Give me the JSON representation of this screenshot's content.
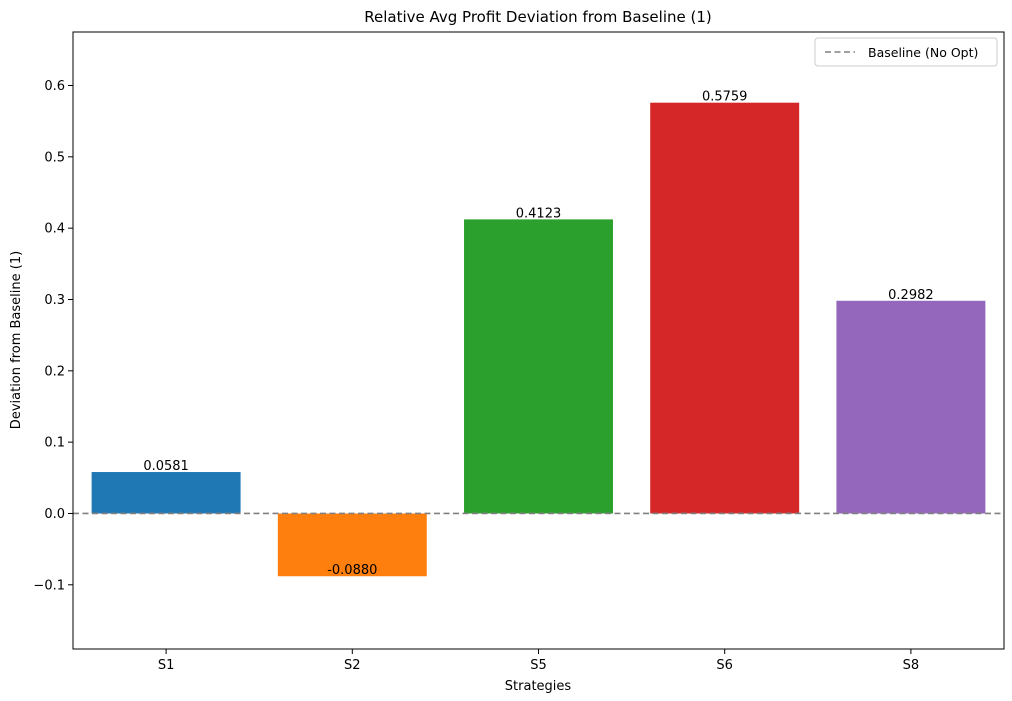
{
  "chart_data": {
    "type": "bar",
    "title": "Relative Avg Profit Deviation from Baseline (1)",
    "xlabel": "Strategies",
    "ylabel": "Deviation from Baseline (1)",
    "categories": [
      "S1",
      "S2",
      "S5",
      "S6",
      "S8"
    ],
    "values": [
      0.0581,
      -0.088,
      0.4123,
      0.5759,
      0.2982
    ],
    "value_labels": [
      "0.0581",
      "-0.0880",
      "0.4123",
      "0.5759",
      "0.2982"
    ],
    "colors": [
      "#1f77b4",
      "#ff7f0e",
      "#2ca02c",
      "#d62728",
      "#9467bd"
    ],
    "ylim": [
      -0.19,
      0.675
    ],
    "yticks": [
      -0.1,
      0.0,
      0.1,
      0.2,
      0.3,
      0.4,
      0.5,
      0.6
    ],
    "ytick_labels": [
      "−0.1",
      "0.0",
      "0.1",
      "0.2",
      "0.3",
      "0.4",
      "0.5",
      "0.6"
    ],
    "baseline": {
      "value": 0.0,
      "label": "Baseline (No Opt)",
      "color": "#808080",
      "style": "dashed"
    },
    "legend": {
      "position": "top-right",
      "entries": [
        "Baseline (No Opt)"
      ]
    },
    "grid": false
  }
}
